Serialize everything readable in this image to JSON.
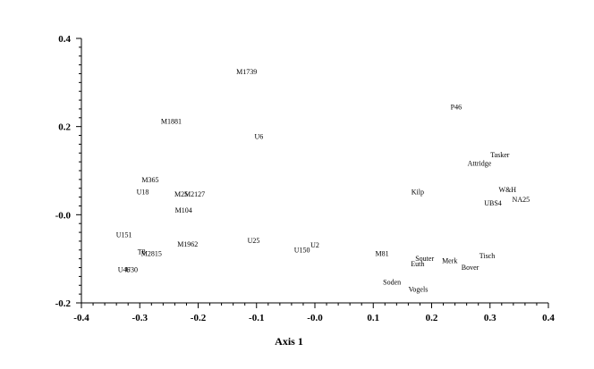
{
  "chart_data": {
    "type": "scatter",
    "title": "",
    "xlabel": "Axis 1",
    "ylabel": "",
    "xlim": [
      -0.4,
      0.4
    ],
    "ylim": [
      -0.2,
      0.4
    ],
    "x_ticks": [
      "-0.4",
      "-0.3",
      "-0.2",
      "-0.1",
      "-0.0",
      "0.1",
      "0.2",
      "0.3",
      "0.4"
    ],
    "y_ticks": [
      "-0.2",
      "-0.0",
      "0.2",
      "0.4"
    ],
    "grid": false,
    "points": [
      {
        "label": "M1739",
        "x": -0.117,
        "y": 0.325
      },
      {
        "label": "M1881",
        "x": -0.246,
        "y": 0.213
      },
      {
        "label": "U6",
        "x": -0.096,
        "y": 0.178
      },
      {
        "label": "P46",
        "x": 0.242,
        "y": 0.245
      },
      {
        "label": "Tasker",
        "x": 0.317,
        "y": 0.136
      },
      {
        "label": "Attridge",
        "x": 0.282,
        "y": 0.117
      },
      {
        "label": "M365",
        "x": -0.282,
        "y": 0.08
      },
      {
        "label": "U18",
        "x": -0.295,
        "y": 0.052
      },
      {
        "label": "M2127",
        "x": -0.206,
        "y": 0.047
      },
      {
        "label": "M25",
        "x": -0.229,
        "y": 0.047
      },
      {
        "label": "Kilp",
        "x": 0.176,
        "y": 0.052
      },
      {
        "label": "W&H",
        "x": 0.33,
        "y": 0.057
      },
      {
        "label": "NA25",
        "x": 0.353,
        "y": 0.035
      },
      {
        "label": "UBS4",
        "x": 0.305,
        "y": 0.027
      },
      {
        "label": "M104",
        "x": -0.225,
        "y": 0.011
      },
      {
        "label": "U151",
        "x": -0.327,
        "y": -0.045
      },
      {
        "label": "U25",
        "x": -0.105,
        "y": -0.058
      },
      {
        "label": "M1962",
        "x": -0.218,
        "y": -0.066
      },
      {
        "label": "U2",
        "x": 0.0,
        "y": -0.068
      },
      {
        "label": "U150",
        "x": -0.022,
        "y": -0.079
      },
      {
        "label": "T8",
        "x": -0.297,
        "y": -0.083
      },
      {
        "label": "M2815",
        "x": -0.28,
        "y": -0.087
      },
      {
        "label": "M81",
        "x": 0.115,
        "y": -0.087
      },
      {
        "label": "Tisch",
        "x": 0.295,
        "y": -0.093
      },
      {
        "label": "Souter",
        "x": 0.188,
        "y": -0.099
      },
      {
        "label": "Merk",
        "x": 0.231,
        "y": -0.104
      },
      {
        "label": "Euth",
        "x": 0.176,
        "y": -0.111
      },
      {
        "label": "Bover",
        "x": 0.266,
        "y": -0.119
      },
      {
        "label": "U46",
        "x": -0.327,
        "y": -0.124
      },
      {
        "label": "U30",
        "x": -0.314,
        "y": -0.124
      },
      {
        "label": "Soden",
        "x": 0.132,
        "y": -0.152
      },
      {
        "label": "Vogels",
        "x": 0.177,
        "y": -0.169
      }
    ]
  }
}
